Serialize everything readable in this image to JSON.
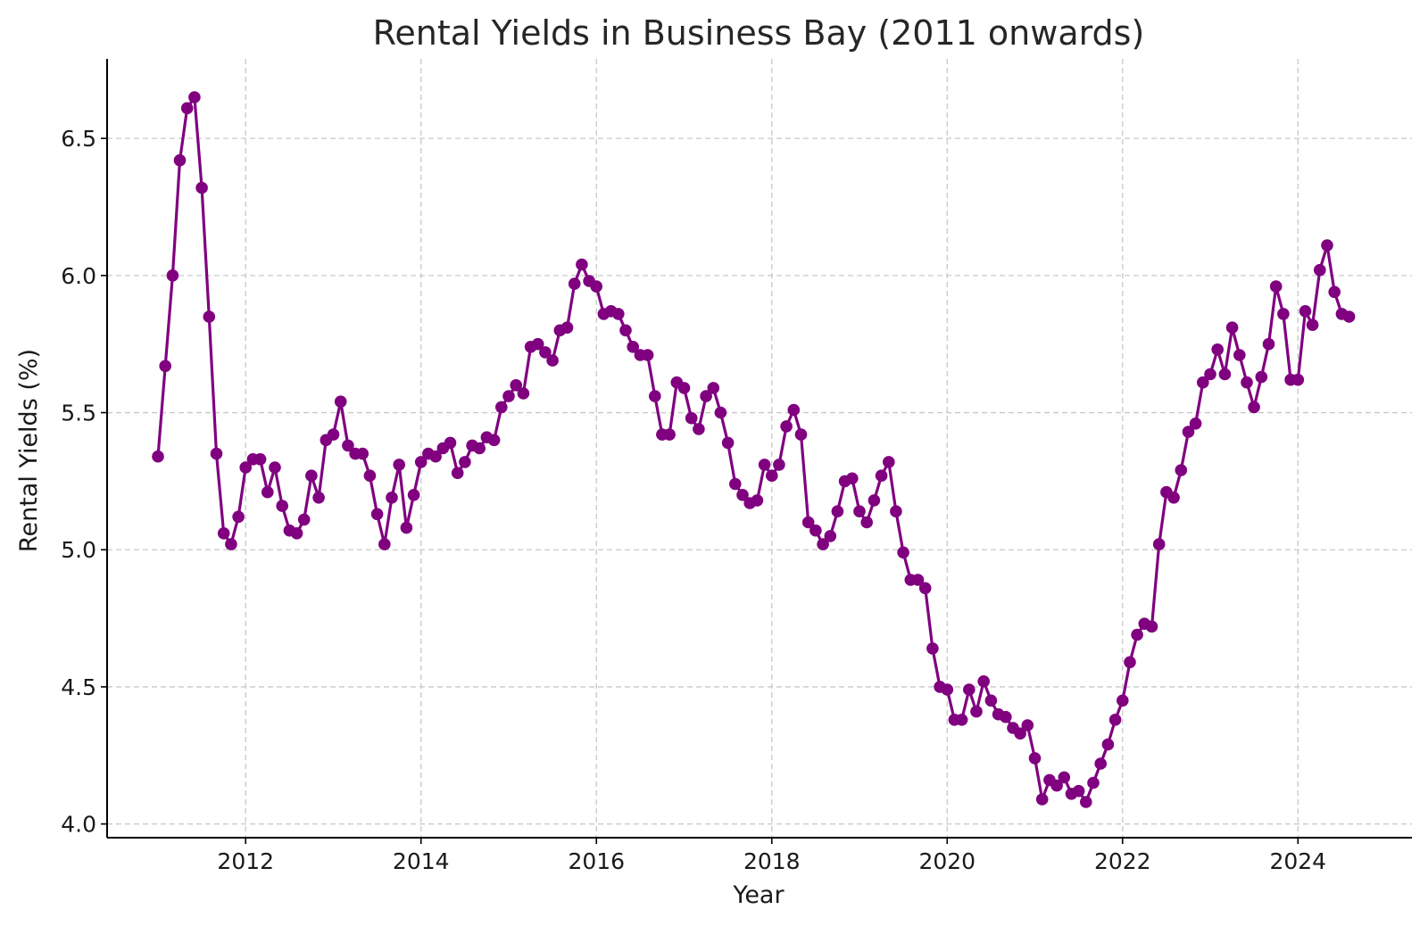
{
  "chart_data": {
    "type": "line",
    "title": "Rental Yields in Business Bay (2011 onwards)",
    "xlabel": "Year",
    "ylabel": "Rental Yields (%)",
    "xlim": [
      2010.42,
      2025.3
    ],
    "ylim": [
      3.95,
      6.79
    ],
    "x_ticks": [
      2012,
      2014,
      2016,
      2018,
      2020,
      2022,
      2024
    ],
    "y_ticks": [
      "4.0",
      "4.5",
      "5.0",
      "5.5",
      "6.0",
      "6.5"
    ],
    "grid": true,
    "marker": "circle",
    "series": [
      {
        "color": "#800080",
        "start": "2011-01",
        "frequency": "monthly",
        "values": [
          5.34,
          5.67,
          6.0,
          6.42,
          6.61,
          6.65,
          6.32,
          5.85,
          5.35,
          5.06,
          5.02,
          5.12,
          5.3,
          5.33,
          5.33,
          5.21,
          5.3,
          5.16,
          5.07,
          5.06,
          5.11,
          5.27,
          5.19,
          5.4,
          5.42,
          5.54,
          5.38,
          5.35,
          5.35,
          5.27,
          5.13,
          5.02,
          5.19,
          5.31,
          5.08,
          5.2,
          5.32,
          5.35,
          5.34,
          5.37,
          5.39,
          5.28,
          5.32,
          5.38,
          5.37,
          5.41,
          5.4,
          5.52,
          5.56,
          5.6,
          5.57,
          5.74,
          5.75,
          5.72,
          5.69,
          5.8,
          5.81,
          5.97,
          6.04,
          5.98,
          5.96,
          5.86,
          5.87,
          5.86,
          5.8,
          5.74,
          5.71,
          5.71,
          5.56,
          5.42,
          5.42,
          5.61,
          5.59,
          5.48,
          5.44,
          5.56,
          5.59,
          5.5,
          5.39,
          5.24,
          5.2,
          5.17,
          5.18,
          5.31,
          5.27,
          5.31,
          5.45,
          5.51,
          5.42,
          5.1,
          5.07,
          5.02,
          5.05,
          5.14,
          5.25,
          5.26,
          5.14,
          5.1,
          5.18,
          5.27,
          5.32,
          5.14,
          4.99,
          4.89,
          4.89,
          4.86,
          4.64,
          4.5,
          4.49,
          4.38,
          4.38,
          4.49,
          4.41,
          4.52,
          4.45,
          4.4,
          4.39,
          4.35,
          4.33,
          4.36,
          4.24,
          4.09,
          4.16,
          4.14,
          4.17,
          4.11,
          4.12,
          4.08,
          4.15,
          4.22,
          4.29,
          4.38,
          4.45,
          4.59,
          4.69,
          4.73,
          4.72,
          5.02,
          5.21,
          5.19,
          5.29,
          5.43,
          5.46,
          5.61,
          5.64,
          5.73,
          5.64,
          5.81,
          5.71,
          5.61,
          5.52,
          5.63,
          5.75,
          5.96,
          5.86,
          5.62,
          5.62,
          5.87,
          5.82,
          6.02,
          6.11,
          5.94,
          5.86,
          5.85
        ]
      }
    ]
  }
}
